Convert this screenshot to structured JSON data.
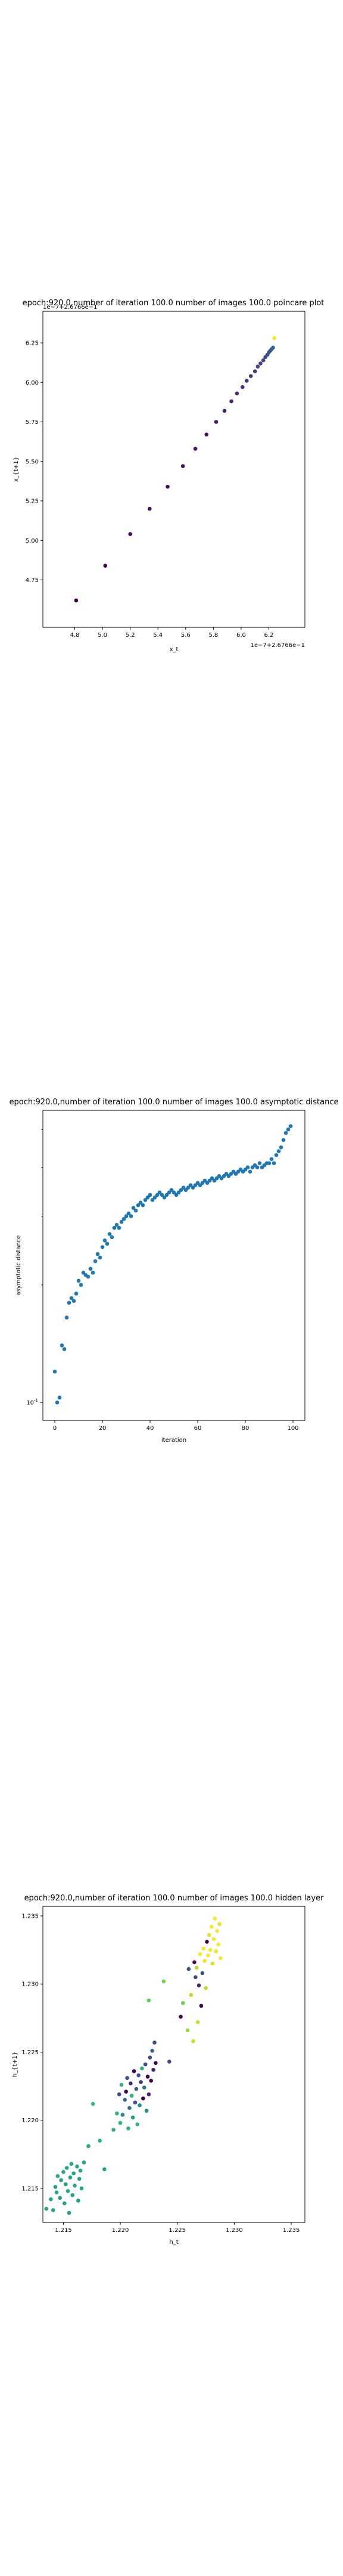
{
  "chart_data": [
    {
      "type": "scatter",
      "title": "epoch:920.0,number of iteration 100.0 number of images 100.0 poincare plot",
      "xlabel": "x_t",
      "ylabel": "x_{t+1}",
      "xlim": [
        4.57,
        6.46
      ],
      "ylim": [
        4.45,
        6.45
      ],
      "xticks": [
        "4.8",
        "5.0",
        "5.2",
        "5.4",
        "5.6",
        "5.8",
        "6.0",
        "6.2"
      ],
      "yticks": [
        "4.75",
        "5.00",
        "5.25",
        "5.50",
        "5.75",
        "6.00",
        "6.25"
      ],
      "x_offset_label": "1e−7+2.6766e−1",
      "y_offset_label": "1e−7+2.6766e−1",
      "grid": false,
      "colormap": "viridis",
      "x": [
        4.81,
        5.02,
        5.2,
        5.34,
        5.47,
        5.58,
        5.67,
        5.75,
        5.82,
        5.88,
        5.93,
        5.97,
        6.01,
        6.04,
        6.07,
        6.1,
        6.12,
        6.14,
        6.16,
        6.175,
        6.19,
        6.2,
        6.21,
        6.22,
        6.23,
        6.24
      ],
      "y": [
        4.62,
        4.84,
        5.04,
        5.2,
        5.34,
        5.47,
        5.58,
        5.67,
        5.75,
        5.82,
        5.88,
        5.93,
        5.97,
        6.01,
        6.04,
        6.07,
        6.1,
        6.12,
        6.14,
        6.16,
        6.175,
        6.19,
        6.2,
        6.21,
        6.22,
        6.28
      ],
      "colors": [
        "#440154",
        "#440154",
        "#450559",
        "#46085c",
        "#460b5e",
        "#470e61",
        "#481467",
        "#481769",
        "#481c6e",
        "#482071",
        "#482475",
        "#472a7a",
        "#472d7b",
        "#46327e",
        "#453781",
        "#443983",
        "#433e85",
        "#424186",
        "#404688",
        "#3e4989",
        "#3c4f8a",
        "#3a548c",
        "#38598c",
        "#355f8d",
        "#32658e",
        "#fde725"
      ]
    },
    {
      "type": "scatter",
      "title": "epoch:920.0,number of iteration 100.0  number of images 100.0 asymptotic distance",
      "xlabel": "iteration",
      "ylabel": "asymptotic distance",
      "xlim": [
        -5,
        105
      ],
      "ylim": [
        0.09,
        0.56
      ],
      "yscale": "log",
      "xticks": [
        "0",
        "20",
        "40",
        "60",
        "80",
        "100"
      ],
      "yticks": [
        "10^-1"
      ],
      "grid": false,
      "series": [
        {
          "color": "#1f77b4",
          "x": [
            0,
            1,
            2,
            3,
            4,
            5,
            6,
            7,
            8,
            9,
            10,
            11,
            12,
            13,
            14,
            15,
            16,
            17,
            18,
            19,
            20,
            21,
            22,
            23,
            24,
            25,
            26,
            27,
            28,
            29,
            30,
            31,
            32,
            33,
            34,
            35,
            36,
            37,
            38,
            39,
            40,
            41,
            42,
            43,
            44,
            45,
            46,
            47,
            48,
            49,
            50,
            51,
            52,
            53,
            54,
            55,
            56,
            57,
            58,
            59,
            60,
            61,
            62,
            63,
            64,
            65,
            66,
            67,
            68,
            69,
            70,
            71,
            72,
            73,
            74,
            75,
            76,
            77,
            78,
            79,
            80,
            81,
            82,
            83,
            84,
            85,
            86,
            87,
            88,
            89,
            90,
            91,
            92,
            93,
            94,
            95,
            96,
            97,
            98,
            99
          ],
          "values": [
            0.12,
            0.1,
            0.103,
            0.14,
            0.137,
            0.165,
            0.18,
            0.185,
            0.182,
            0.19,
            0.205,
            0.2,
            0.215,
            0.212,
            0.21,
            0.22,
            0.215,
            0.23,
            0.24,
            0.235,
            0.25,
            0.26,
            0.255,
            0.27,
            0.265,
            0.28,
            0.285,
            0.28,
            0.29,
            0.295,
            0.3,
            0.305,
            0.3,
            0.315,
            0.31,
            0.32,
            0.325,
            0.32,
            0.33,
            0.335,
            0.34,
            0.33,
            0.335,
            0.34,
            0.345,
            0.34,
            0.335,
            0.34,
            0.345,
            0.35,
            0.345,
            0.34,
            0.345,
            0.35,
            0.355,
            0.35,
            0.355,
            0.36,
            0.355,
            0.36,
            0.365,
            0.36,
            0.365,
            0.37,
            0.365,
            0.37,
            0.375,
            0.37,
            0.375,
            0.38,
            0.375,
            0.38,
            0.385,
            0.38,
            0.385,
            0.39,
            0.385,
            0.39,
            0.395,
            0.39,
            0.395,
            0.4,
            0.39,
            0.4,
            0.405,
            0.4,
            0.41,
            0.4,
            0.405,
            0.41,
            0.41,
            0.42,
            0.41,
            0.43,
            0.44,
            0.45,
            0.47,
            0.49,
            0.5,
            0.51
          ]
        }
      ]
    },
    {
      "type": "scatter",
      "title": "epoch:920.0,number of iteration 100.0  number of images 100.0 hidden layer",
      "xlabel": "h_t",
      "ylabel": "h_{t+1}",
      "xlim": [
        1.2132,
        1.2362
      ],
      "ylim": [
        1.2125,
        1.2357
      ],
      "xticks": [
        "1.215",
        "1.220",
        "1.225",
        "1.230",
        "1.235"
      ],
      "yticks": [
        "1.215",
        "1.220",
        "1.225",
        "1.230",
        "1.235"
      ],
      "grid": false,
      "colormap": "viridis",
      "points": [
        {
          "x": 1.2135,
          "y": 1.2135,
          "c": "#21a685"
        },
        {
          "x": 1.2139,
          "y": 1.2142,
          "c": "#21a685"
        },
        {
          "x": 1.2141,
          "y": 1.2134,
          "c": "#22a884"
        },
        {
          "x": 1.2143,
          "y": 1.2151,
          "c": "#20a386"
        },
        {
          "x": 1.2144,
          "y": 1.2147,
          "c": "#21a685"
        },
        {
          "x": 1.2145,
          "y": 1.2159,
          "c": "#22a884"
        },
        {
          "x": 1.2147,
          "y": 1.2143,
          "c": "#1fa187"
        },
        {
          "x": 1.2148,
          "y": 1.2156,
          "c": "#21a685"
        },
        {
          "x": 1.215,
          "y": 1.2162,
          "c": "#22a884"
        },
        {
          "x": 1.2151,
          "y": 1.2139,
          "c": "#20a386"
        },
        {
          "x": 1.2152,
          "y": 1.2153,
          "c": "#21a685"
        },
        {
          "x": 1.2153,
          "y": 1.2165,
          "c": "#23a983"
        },
        {
          "x": 1.2154,
          "y": 1.2148,
          "c": "#22a884"
        },
        {
          "x": 1.2155,
          "y": 1.2132,
          "c": "#1fa187"
        },
        {
          "x": 1.2156,
          "y": 1.2158,
          "c": "#21a685"
        },
        {
          "x": 1.2157,
          "y": 1.2168,
          "c": "#22a884"
        },
        {
          "x": 1.2158,
          "y": 1.2145,
          "c": "#20a386"
        },
        {
          "x": 1.2159,
          "y": 1.2161,
          "c": "#21a685"
        },
        {
          "x": 1.216,
          "y": 1.2152,
          "c": "#22a884"
        },
        {
          "x": 1.2162,
          "y": 1.2166,
          "c": "#23a983"
        },
        {
          "x": 1.2163,
          "y": 1.2141,
          "c": "#1fa187"
        },
        {
          "x": 1.2164,
          "y": 1.2157,
          "c": "#21a685"
        },
        {
          "x": 1.2165,
          "y": 1.2163,
          "c": "#22a884"
        },
        {
          "x": 1.2166,
          "y": 1.215,
          "c": "#20a386"
        },
        {
          "x": 1.2168,
          "y": 1.2169,
          "c": "#21a685"
        },
        {
          "x": 1.2172,
          "y": 1.2181,
          "c": "#27ad81"
        },
        {
          "x": 1.2176,
          "y": 1.2212,
          "c": "#35b779"
        },
        {
          "x": 1.2182,
          "y": 1.2185,
          "c": "#2ab07f"
        },
        {
          "x": 1.2186,
          "y": 1.2164,
          "c": "#1fa187"
        },
        {
          "x": 1.2194,
          "y": 1.2193,
          "c": "#2db27d"
        },
        {
          "x": 1.2197,
          "y": 1.2205,
          "c": "#34b679"
        },
        {
          "x": 1.2199,
          "y": 1.2219,
          "c": "#3e4989"
        },
        {
          "x": 1.22,
          "y": 1.2198,
          "c": "#2fb47c"
        },
        {
          "x": 1.2201,
          "y": 1.2226,
          "c": "#35b779"
        },
        {
          "x": 1.2202,
          "y": 1.2204,
          "c": "#26828e"
        },
        {
          "x": 1.2204,
          "y": 1.2215,
          "c": "#31688e"
        },
        {
          "x": 1.2205,
          "y": 1.2221,
          "c": "#440154"
        },
        {
          "x": 1.2206,
          "y": 1.2231,
          "c": "#3b528b"
        },
        {
          "x": 1.2207,
          "y": 1.2194,
          "c": "#2db27d"
        },
        {
          "x": 1.2208,
          "y": 1.2209,
          "c": "#2c728e"
        },
        {
          "x": 1.2209,
          "y": 1.2227,
          "c": "#482878"
        },
        {
          "x": 1.221,
          "y": 1.2218,
          "c": "#2fb47c"
        },
        {
          "x": 1.2211,
          "y": 1.2202,
          "c": "#1f9e89"
        },
        {
          "x": 1.2212,
          "y": 1.2236,
          "c": "#440154"
        },
        {
          "x": 1.2213,
          "y": 1.2213,
          "c": "#3e4989"
        },
        {
          "x": 1.2214,
          "y": 1.2223,
          "c": "#355f8d"
        },
        {
          "x": 1.2215,
          "y": 1.2197,
          "c": "#35b779"
        },
        {
          "x": 1.2216,
          "y": 1.2233,
          "c": "#3b528b"
        },
        {
          "x": 1.2217,
          "y": 1.2211,
          "c": "#21918c"
        },
        {
          "x": 1.2218,
          "y": 1.2228,
          "c": "#443983"
        },
        {
          "x": 1.2219,
          "y": 1.2238,
          "c": "#2db27d"
        },
        {
          "x": 1.222,
          "y": 1.2216,
          "c": "#440154"
        },
        {
          "x": 1.2221,
          "y": 1.2224,
          "c": "#2c728e"
        },
        {
          "x": 1.2222,
          "y": 1.2241,
          "c": "#3e4989"
        },
        {
          "x": 1.2223,
          "y": 1.2207,
          "c": "#21918c"
        },
        {
          "x": 1.2224,
          "y": 1.2232,
          "c": "#440154"
        },
        {
          "x": 1.2225,
          "y": 1.2219,
          "c": "#482878"
        },
        {
          "x": 1.2226,
          "y": 1.2246,
          "c": "#3b528b"
        },
        {
          "x": 1.2227,
          "y": 1.2229,
          "c": "#440154"
        },
        {
          "x": 1.2228,
          "y": 1.2251,
          "c": "#31688e"
        },
        {
          "x": 1.2229,
          "y": 1.2237,
          "c": "#482878"
        },
        {
          "x": 1.223,
          "y": 1.2257,
          "c": "#3e4989"
        },
        {
          "x": 1.2225,
          "y": 1.2288,
          "c": "#5ec962"
        },
        {
          "x": 1.2231,
          "y": 1.2242,
          "c": "#440154"
        },
        {
          "x": 1.2238,
          "y": 1.2302,
          "c": "#7ad151"
        },
        {
          "x": 1.2243,
          "y": 1.2243,
          "c": "#3e4989"
        },
        {
          "x": 1.2253,
          "y": 1.2276,
          "c": "#440154"
        },
        {
          "x": 1.2255,
          "y": 1.2286,
          "c": "#6ece58"
        },
        {
          "x": 1.2259,
          "y": 1.2266,
          "c": "#a0da39"
        },
        {
          "x": 1.226,
          "y": 1.2311,
          "c": "#3b528b"
        },
        {
          "x": 1.2262,
          "y": 1.2292,
          "c": "#bddf26"
        },
        {
          "x": 1.2264,
          "y": 1.2258,
          "c": "#cae11f"
        },
        {
          "x": 1.2265,
          "y": 1.2316,
          "c": "#440154"
        },
        {
          "x": 1.2266,
          "y": 1.2305,
          "c": "#3e4989"
        },
        {
          "x": 1.2267,
          "y": 1.2312,
          "c": "#b5de2b"
        },
        {
          "x": 1.2268,
          "y": 1.2272,
          "c": "#d0e11c"
        },
        {
          "x": 1.2269,
          "y": 1.2299,
          "c": "#482878"
        },
        {
          "x": 1.227,
          "y": 1.2322,
          "c": "#fde725"
        },
        {
          "x": 1.2271,
          "y": 1.2284,
          "c": "#440154"
        },
        {
          "x": 1.2272,
          "y": 1.2308,
          "c": "#3b528b"
        },
        {
          "x": 1.2273,
          "y": 1.2326,
          "c": "#fde725"
        },
        {
          "x": 1.2274,
          "y": 1.2317,
          "c": "#f1e51d"
        },
        {
          "x": 1.2275,
          "y": 1.2297,
          "c": "#bddf26"
        },
        {
          "x": 1.2276,
          "y": 1.2331,
          "c": "#440154"
        },
        {
          "x": 1.2277,
          "y": 1.2321,
          "c": "#fde725"
        },
        {
          "x": 1.2278,
          "y": 1.2336,
          "c": "#e5e419"
        },
        {
          "x": 1.2279,
          "y": 1.2325,
          "c": "#fde725"
        },
        {
          "x": 1.228,
          "y": 1.2342,
          "c": "#fde725"
        },
        {
          "x": 1.2281,
          "y": 1.2315,
          "c": "#d8e219"
        },
        {
          "x": 1.2282,
          "y": 1.2333,
          "c": "#fde725"
        },
        {
          "x": 1.2283,
          "y": 1.2348,
          "c": "#fde725"
        },
        {
          "x": 1.2284,
          "y": 1.2324,
          "c": "#f1e51d"
        },
        {
          "x": 1.2285,
          "y": 1.2339,
          "c": "#fde725"
        },
        {
          "x": 1.2286,
          "y": 1.2329,
          "c": "#fde725"
        },
        {
          "x": 1.2287,
          "y": 1.2344,
          "c": "#e5e419"
        },
        {
          "x": 1.2288,
          "y": 1.2319,
          "c": "#fde725"
        }
      ]
    }
  ]
}
